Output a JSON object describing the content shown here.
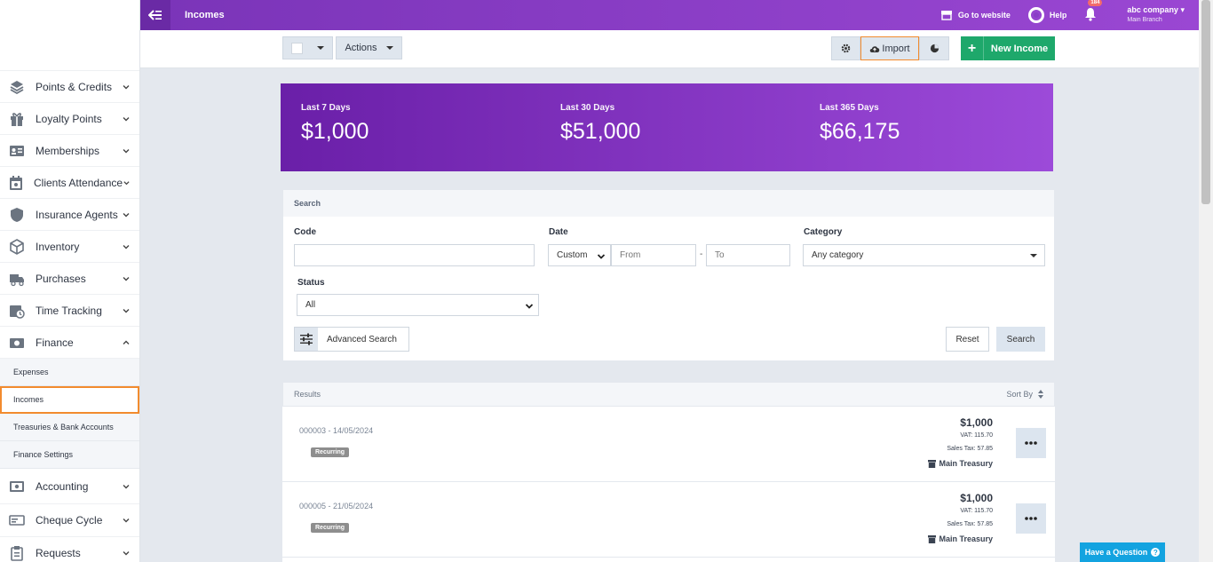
{
  "topbar": {
    "title": "Incomes",
    "go_to_website": "Go to website",
    "help": "Help",
    "notification_count": "184",
    "company": "abc company",
    "branch": "Main Branch"
  },
  "sidebar": {
    "items_top": [
      {
        "label": "Points & Credits",
        "icon": "layers-icon"
      },
      {
        "label": "Loyalty Points",
        "icon": "gift-icon"
      },
      {
        "label": "Memberships",
        "icon": "id-card-icon"
      },
      {
        "label": "Clients Attendance",
        "icon": "calendar-check-icon"
      },
      {
        "label": "Insurance Agents",
        "icon": "shield-icon"
      },
      {
        "label": "Inventory",
        "icon": "box-icon"
      },
      {
        "label": "Purchases",
        "icon": "truck-icon"
      },
      {
        "label": "Time Tracking",
        "icon": "calendar-clock-icon"
      },
      {
        "label": "Finance",
        "icon": "money-icon"
      }
    ],
    "finance_sub": [
      "Expenses",
      "Incomes",
      "Treasuries & Bank Accounts",
      "Finance Settings"
    ],
    "items_bottom": [
      {
        "label": "Accounting",
        "icon": "cash-icon"
      },
      {
        "label": "Cheque Cycle",
        "icon": "cheque-icon"
      },
      {
        "label": "Requests",
        "icon": "clipboard-icon"
      }
    ]
  },
  "actionbar": {
    "actions": "Actions",
    "import": "Import",
    "new_income": "New Income"
  },
  "stats": [
    {
      "title": "Last 7 Days",
      "value": "$1,000"
    },
    {
      "title": "Last 30 Days",
      "value": "$51,000"
    },
    {
      "title": "Last 365 Days",
      "value": "$66,175"
    }
  ],
  "search": {
    "title": "Search",
    "code_label": "Code",
    "date_label": "Date",
    "date_mode": "Custom",
    "from_placeholder": "From",
    "to_placeholder": "To",
    "date_sep": "-",
    "category_label": "Category",
    "category_value": "Any category",
    "status_label": "Status",
    "status_value": "All",
    "advanced": "Advanced Search",
    "reset": "Reset",
    "search_btn": "Search"
  },
  "results": {
    "title": "Results",
    "sort_by": "Sort By",
    "rows": [
      {
        "code": "000003 - 14/05/2024",
        "tag": "Recurring",
        "amount": "$1,000",
        "vat": "VAT: 115.70",
        "sales_tax": "Sales Tax: 57.85",
        "treasury": "Main Treasury"
      },
      {
        "code": "000005 - 21/05/2024",
        "tag": "Recurring",
        "amount": "$1,000",
        "vat": "VAT: 115.70",
        "sales_tax": "Sales Tax: 57.85",
        "treasury": "Main Treasury"
      }
    ]
  },
  "have_question": "Have a Question"
}
